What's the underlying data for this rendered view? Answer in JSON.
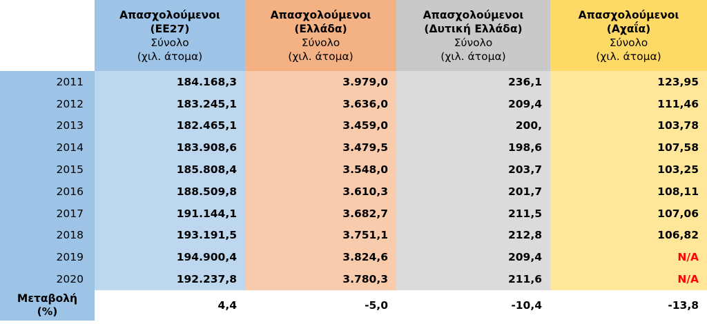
{
  "headers": [
    {
      "title_line1": "Απασχολούμενοι",
      "title_line2": "(ΕΕ27)",
      "sub_line1": "Σύνολο",
      "sub_line2": "(χιλ. άτομα)"
    },
    {
      "title_line1": "Απασχολούμενοι",
      "title_line2": "(Ελλάδα)",
      "sub_line1": "Σύνολο",
      "sub_line2": "(χιλ. άτομα)"
    },
    {
      "title_line1": "Απασχολούμενοι",
      "title_line2": "(Δυτική Ελλάδα)",
      "sub_line1": "Σύνολο",
      "sub_line2": "(χιλ. άτομα)"
    },
    {
      "title_line1": "Απασχολούμενοι",
      "title_line2": "(Αχαΐα)",
      "sub_line1": "Σύνολο",
      "sub_line2": "(χιλ. άτομα)"
    }
  ],
  "rows": [
    {
      "year": "2011",
      "eu": "184.168,3",
      "gr": "3.979,0",
      "wg": "236,1",
      "ac": "123,95"
    },
    {
      "year": "2012",
      "eu": "183.245,1",
      "gr": "3.636,0",
      "wg": "209,4",
      "ac": "111,46"
    },
    {
      "year": "2013",
      "eu": "182.465,1",
      "gr": "3.459,0",
      "wg": "200,",
      "ac": "103,78"
    },
    {
      "year": "2014",
      "eu": "183.908,6",
      "gr": "3.479,5",
      "wg": "198,6",
      "ac": "107,58"
    },
    {
      "year": "2015",
      "eu": "185.808,4",
      "gr": "3.548,0",
      "wg": "203,7",
      "ac": "103,25"
    },
    {
      "year": "2016",
      "eu": "188.509,8",
      "gr": "3.610,3",
      "wg": "201,7",
      "ac": "108,11"
    },
    {
      "year": "2017",
      "eu": "191.144,1",
      "gr": "3.682,7",
      "wg": "211,5",
      "ac": "107,06"
    },
    {
      "year": "2018",
      "eu": "193.191,5",
      "gr": "3.751,1",
      "wg": "212,8",
      "ac": "106,82"
    },
    {
      "year": "2019",
      "eu": "194.900,4",
      "gr": "3.824,6",
      "wg": "209,4",
      "ac": "N/A"
    },
    {
      "year": "2020",
      "eu": "192.237,8",
      "gr": "3.780,3",
      "wg": "211,6",
      "ac": "N/A"
    }
  ],
  "change": {
    "label_line1": "Μεταβολή",
    "label_line2": "(%)",
    "eu": "4,4",
    "gr": "-5,0",
    "wg": "-10,4",
    "ac": "-13,8"
  },
  "colors": {
    "na": "#ff0000"
  }
}
